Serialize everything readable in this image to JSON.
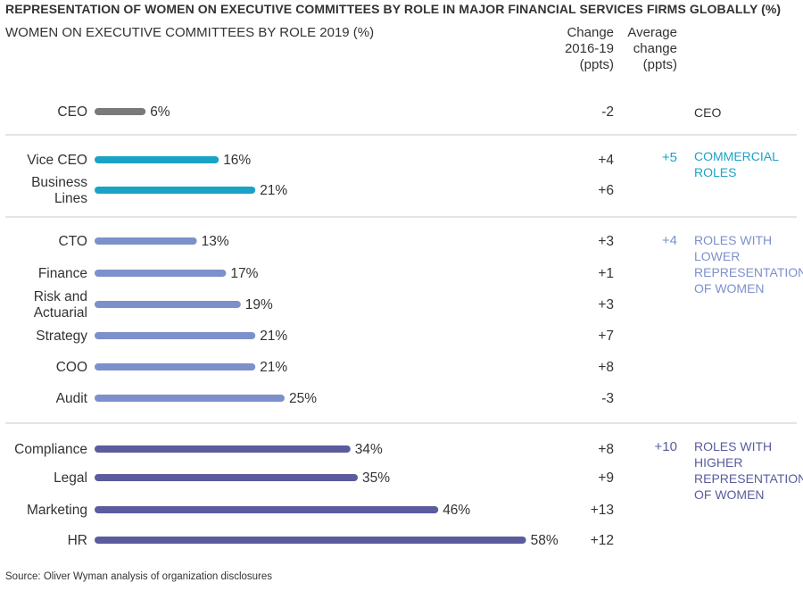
{
  "title": "REPRESENTATION OF WOMEN ON EXECUTIVE COMMITTEES BY ROLE IN MAJOR FINANCIAL SERVICES FIRMS GLOBALLY (%)",
  "subtitle": "WOMEN ON EXECUTIVE COMMITTEES BY ROLE 2019 (%)",
  "column_headers": {
    "change": [
      "Change",
      "2016-19",
      "(ppts)"
    ],
    "average": [
      "Average",
      "change",
      "(ppts)"
    ]
  },
  "source": "Source: Oliver Wyman analysis of organization disclosures",
  "colors": {
    "ceo": "#7a7a7a",
    "commercial": "#1ba3c6",
    "lower": "#7d90cc",
    "higher": "#5a5c9e",
    "divider": "#c9c9c9"
  },
  "chart_data": {
    "type": "bar",
    "orientation": "horizontal",
    "title": "WOMEN ON EXECUTIVE COMMITTEES BY ROLE 2019 (%)",
    "unit": "%",
    "xlim": [
      0,
      100
    ],
    "categories": [
      "CEO",
      "Vice CEO",
      "Business Lines",
      "CTO",
      "Finance",
      "Risk and Actuarial",
      "Strategy",
      "COO",
      "Audit",
      "Compliance",
      "Legal",
      "Marketing",
      "HR"
    ],
    "category_lines": [
      [
        "CEO"
      ],
      [
        "Vice CEO"
      ],
      [
        "Business",
        "Lines"
      ],
      [
        "CTO"
      ],
      [
        "Finance"
      ],
      [
        "Risk and",
        "Actuarial"
      ],
      [
        "Strategy"
      ],
      [
        "COO"
      ],
      [
        "Audit"
      ],
      [
        "Compliance"
      ],
      [
        "Legal"
      ],
      [
        "Marketing"
      ],
      [
        "HR"
      ]
    ],
    "values": [
      6,
      16,
      21,
      13,
      17,
      19,
      21,
      21,
      25,
      34,
      35,
      46,
      58
    ],
    "value_labels": [
      "6%",
      "16%",
      "21%",
      "13%",
      "17%",
      "19%",
      "21%",
      "21%",
      "25%",
      "34%",
      "35%",
      "46%",
      "58%"
    ],
    "change_2016_19_ppts": [
      "-2",
      "+4",
      "+6",
      "+3",
      "+1",
      "+3",
      "+7",
      "+8",
      "-3",
      "+8",
      "+9",
      "+13",
      "+12"
    ],
    "groups": [
      {
        "key": "ceo",
        "label_lines": [
          "CEO"
        ],
        "average_change": "",
        "members": [
          0
        ]
      },
      {
        "key": "commercial",
        "label_lines": [
          "COMMERCIAL",
          "ROLES"
        ],
        "average_change": "+5",
        "members": [
          1,
          2
        ]
      },
      {
        "key": "lower",
        "label_lines": [
          "ROLES WITH",
          "LOWER",
          "REPRESENTATION",
          "OF WOMEN"
        ],
        "average_change": "+4",
        "members": [
          3,
          4,
          5,
          6,
          7,
          8
        ]
      },
      {
        "key": "higher",
        "label_lines": [
          "ROLES WITH",
          "HIGHER",
          "REPRESENTATION",
          "OF WOMEN"
        ],
        "average_change": "+10",
        "members": [
          9,
          10,
          11,
          12
        ]
      }
    ]
  }
}
